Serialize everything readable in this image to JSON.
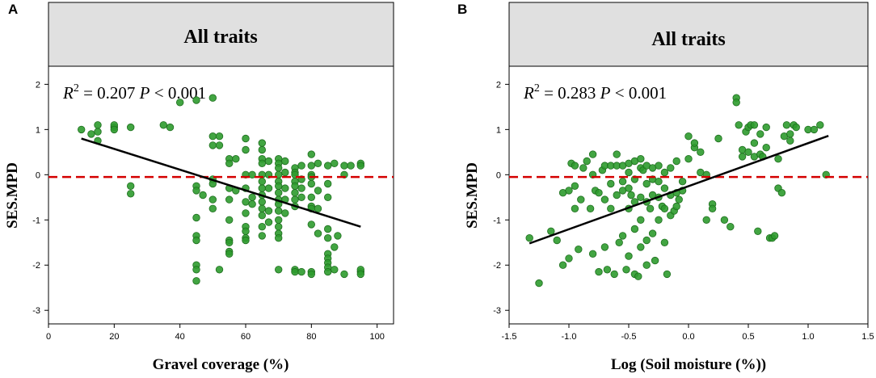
{
  "colors": {
    "point_fill": "#2e9b2e",
    "point_stroke": "#1e6e1e",
    "fit_line": "#000000",
    "ref_line": "#d40000",
    "strip_bg": "#e0e0e0"
  },
  "chart_data": [
    {
      "type": "scatter",
      "panel_label": "A",
      "title": "All traits",
      "xlabel": "Gravel coverage (%)",
      "ylabel": "SES.MPD",
      "xlim": [
        0,
        105
      ],
      "ylim": [
        -3.3,
        2.4
      ],
      "x_ticks": [
        "0",
        "20",
        "40",
        "60",
        "80",
        "100"
      ],
      "x_tick_values": [
        0,
        20,
        40,
        60,
        80,
        100
      ],
      "y_ticks": [
        "-3",
        "-2",
        "-1",
        "0",
        "1",
        "2"
      ],
      "y_tick_values": [
        -3,
        -2,
        -1,
        0,
        1,
        2
      ],
      "stat": {
        "r2_label": "R",
        "r2_exp": "2",
        "r2_value": "= 0.207",
        "p_label": "P",
        "p_value": "< 0.001"
      },
      "reference_line": {
        "y": -0.05,
        "style": "dashed"
      },
      "fit_line": {
        "x": [
          10,
          95
        ],
        "y": [
          0.8,
          -1.15
        ]
      },
      "points": {
        "x": [
          10,
          13,
          15,
          15,
          15,
          20,
          20,
          20,
          25,
          25,
          25,
          35,
          37,
          40,
          45,
          50,
          45,
          45,
          45,
          45,
          45,
          45,
          45,
          45,
          47,
          50,
          50,
          50,
          50,
          50,
          50,
          52,
          52,
          52,
          55,
          55,
          55,
          55,
          55,
          55,
          55,
          55,
          55,
          57,
          57,
          60,
          60,
          60,
          60,
          60,
          60,
          60,
          60,
          60,
          60,
          62,
          62,
          62,
          65,
          65,
          65,
          65,
          65,
          65,
          65,
          65,
          65,
          65,
          65,
          65,
          65,
          67,
          67,
          67,
          67,
          67,
          70,
          70,
          70,
          70,
          70,
          70,
          70,
          70,
          70,
          70,
          70,
          70,
          70,
          70,
          70,
          72,
          72,
          72,
          72,
          72,
          75,
          75,
          75,
          75,
          75,
          75,
          75,
          75,
          75,
          75,
          77,
          77,
          77,
          77,
          77,
          80,
          80,
          80,
          80,
          80,
          80,
          80,
          80,
          80,
          80,
          80,
          82,
          82,
          82,
          82,
          85,
          85,
          85,
          85,
          85,
          85,
          85,
          85,
          85,
          85,
          87,
          87,
          87,
          88,
          90,
          90,
          90,
          92,
          95,
          95,
          95,
          95,
          95
        ],
        "y": [
          1.0,
          0.9,
          1.1,
          0.95,
          0.75,
          1.05,
          1.1,
          1.0,
          1.05,
          -0.25,
          -0.42,
          1.1,
          1.05,
          1.6,
          1.65,
          1.7,
          -0.25,
          -0.35,
          -0.95,
          -1.35,
          -1.45,
          -2.0,
          -2.1,
          -2.35,
          -0.45,
          0.85,
          0.65,
          -0.1,
          -0.2,
          -0.55,
          -0.75,
          0.85,
          0.65,
          -2.1,
          0.35,
          0.25,
          -0.3,
          -0.55,
          -1.0,
          -1.45,
          -1.5,
          -1.7,
          -1.75,
          0.35,
          -0.35,
          0.8,
          0.55,
          0.0,
          -0.3,
          -0.6,
          -0.85,
          -1.15,
          -1.25,
          -1.4,
          -1.45,
          0.0,
          -0.5,
          -0.65,
          0.7,
          0.55,
          0.35,
          0.25,
          0.0,
          -0.15,
          -0.3,
          -0.45,
          -0.6,
          -0.75,
          -0.9,
          -1.15,
          -1.35,
          0.3,
          0.0,
          -0.3,
          -0.8,
          -1.05,
          0.35,
          0.25,
          0.15,
          0.0,
          -0.15,
          -0.25,
          -0.4,
          -0.55,
          -0.65,
          -0.8,
          -1.0,
          -1.15,
          -1.3,
          -1.4,
          -2.1,
          0.3,
          0.05,
          -0.3,
          -0.55,
          -0.85,
          0.15,
          0.05,
          0.0,
          -0.15,
          -0.25,
          -0.4,
          -0.55,
          -0.7,
          -2.1,
          -2.15,
          0.2,
          -0.1,
          -0.3,
          -0.5,
          -2.15,
          0.45,
          0.2,
          0.0,
          -0.05,
          -0.2,
          -0.5,
          -0.7,
          -0.75,
          -1.1,
          -2.15,
          -2.2,
          0.25,
          -0.35,
          -0.75,
          -1.3,
          0.2,
          -0.2,
          -0.5,
          -1.2,
          -1.4,
          -1.75,
          -1.85,
          -1.95,
          -2.05,
          -2.15,
          0.25,
          -1.6,
          -2.1,
          -1.35,
          0.2,
          0.0,
          -2.2,
          0.2,
          0.25,
          0.2,
          -2.15,
          -2.1,
          -2.2
        ]
      }
    },
    {
      "type": "scatter",
      "panel_label": "B",
      "title": "All traits",
      "xlabel": "Log (Soil moisture (%))",
      "ylabel": "SES.MPD",
      "xlim": [
        -1.5,
        1.5
      ],
      "ylim": [
        -3.3,
        2.4
      ],
      "x_ticks": [
        "-1.5",
        "-1.0",
        "-0.5",
        "0.0",
        "0.5",
        "1.0",
        "1.5"
      ],
      "x_tick_values": [
        -1.5,
        -1.0,
        -0.5,
        0.0,
        0.5,
        1.0,
        1.5
      ],
      "y_ticks": [
        "-3",
        "-2",
        "-1",
        "0",
        "1",
        "2"
      ],
      "y_tick_values": [
        -3,
        -2,
        -1,
        0,
        1,
        2
      ],
      "stat": {
        "r2_label": "R",
        "r2_exp": "2",
        "r2_value": "= 0.283",
        "p_label": "P",
        "p_value": "< 0.001"
      },
      "reference_line": {
        "y": -0.05,
        "style": "dashed"
      },
      "fit_line": {
        "x": [
          -1.33,
          1.17
        ],
        "y": [
          -1.52,
          0.86
        ]
      },
      "points": {
        "x": [
          -1.33,
          -1.25,
          -1.15,
          -1.1,
          -1.05,
          -1.05,
          -1.0,
          -1.0,
          -0.98,
          -0.95,
          -0.95,
          -0.95,
          -0.92,
          -0.9,
          -0.88,
          -0.85,
          -0.82,
          -0.8,
          -0.8,
          -0.8,
          -0.78,
          -0.75,
          -0.75,
          -0.72,
          -0.7,
          -0.7,
          -0.7,
          -0.68,
          -0.65,
          -0.65,
          -0.65,
          -0.62,
          -0.6,
          -0.6,
          -0.6,
          -0.58,
          -0.55,
          -0.55,
          -0.55,
          -0.55,
          -0.52,
          -0.5,
          -0.5,
          -0.5,
          -0.5,
          -0.5,
          -0.48,
          -0.45,
          -0.45,
          -0.45,
          -0.45,
          -0.45,
          -0.42,
          -0.4,
          -0.4,
          -0.4,
          -0.4,
          -0.4,
          -0.38,
          -0.35,
          -0.35,
          -0.35,
          -0.35,
          -0.35,
          -0.32,
          -0.3,
          -0.3,
          -0.3,
          -0.3,
          -0.28,
          -0.25,
          -0.25,
          -0.25,
          -0.25,
          -0.22,
          -0.2,
          -0.2,
          -0.2,
          -0.2,
          -0.18,
          -0.15,
          -0.15,
          -0.15,
          -0.12,
          -0.1,
          -0.1,
          -0.1,
          -0.08,
          -0.05,
          -0.05,
          0.0,
          0.0,
          0.05,
          0.05,
          0.1,
          0.1,
          0.15,
          0.15,
          0.2,
          0.2,
          0.25,
          0.3,
          0.35,
          0.4,
          0.4,
          0.42,
          0.45,
          0.45,
          0.48,
          0.5,
          0.5,
          0.52,
          0.55,
          0.55,
          0.55,
          0.58,
          0.6,
          0.6,
          0.62,
          0.65,
          0.65,
          0.68,
          0.7,
          0.72,
          0.75,
          0.75,
          0.78,
          0.8,
          0.82,
          0.85,
          0.85,
          0.88,
          0.9,
          1.0,
          1.05,
          1.1,
          1.15
        ],
        "y": [
          -1.4,
          -2.4,
          -1.25,
          -1.45,
          -2.0,
          -0.4,
          -0.35,
          -1.85,
          0.25,
          0.2,
          -0.25,
          -0.75,
          -1.65,
          -0.55,
          0.15,
          0.3,
          -0.75,
          -1.75,
          0.45,
          0.0,
          -0.35,
          -2.15,
          -0.4,
          0.1,
          0.2,
          -0.55,
          -1.6,
          -2.1,
          0.2,
          -0.2,
          -0.75,
          -2.2,
          0.45,
          0.2,
          -0.45,
          -1.5,
          0.2,
          -0.15,
          -0.35,
          -1.35,
          -2.1,
          0.25,
          0.05,
          -0.3,
          -0.75,
          -1.8,
          -0.45,
          0.3,
          -0.1,
          -0.6,
          -1.2,
          -2.2,
          -2.25,
          0.35,
          0.15,
          -0.5,
          -1.0,
          -1.6,
          0.1,
          0.2,
          -0.2,
          -0.6,
          -1.45,
          -2.0,
          -0.75,
          0.15,
          -0.1,
          -0.45,
          -1.3,
          -1.9,
          0.2,
          -0.15,
          -0.5,
          -1.0,
          -0.7,
          0.05,
          -0.3,
          -0.75,
          -1.5,
          -2.2,
          0.15,
          -0.45,
          -0.9,
          -0.8,
          0.3,
          -0.4,
          -0.7,
          -0.55,
          -0.35,
          -0.15,
          0.85,
          0.35,
          0.6,
          0.7,
          0.5,
          0.05,
          0.0,
          -1.0,
          -0.65,
          -0.75,
          0.8,
          -1.0,
          -1.15,
          1.7,
          1.6,
          1.1,
          0.4,
          0.55,
          0.95,
          1.05,
          0.5,
          1.1,
          1.1,
          0.4,
          0.7,
          -1.25,
          0.9,
          0.45,
          0.4,
          1.05,
          0.6,
          -1.4,
          -1.4,
          -1.35,
          0.35,
          -0.3,
          -0.4,
          0.85,
          1.1,
          0.9,
          0.75,
          1.1,
          1.05,
          1.0,
          1.0,
          1.1,
          0.0
        ]
      }
    }
  ]
}
